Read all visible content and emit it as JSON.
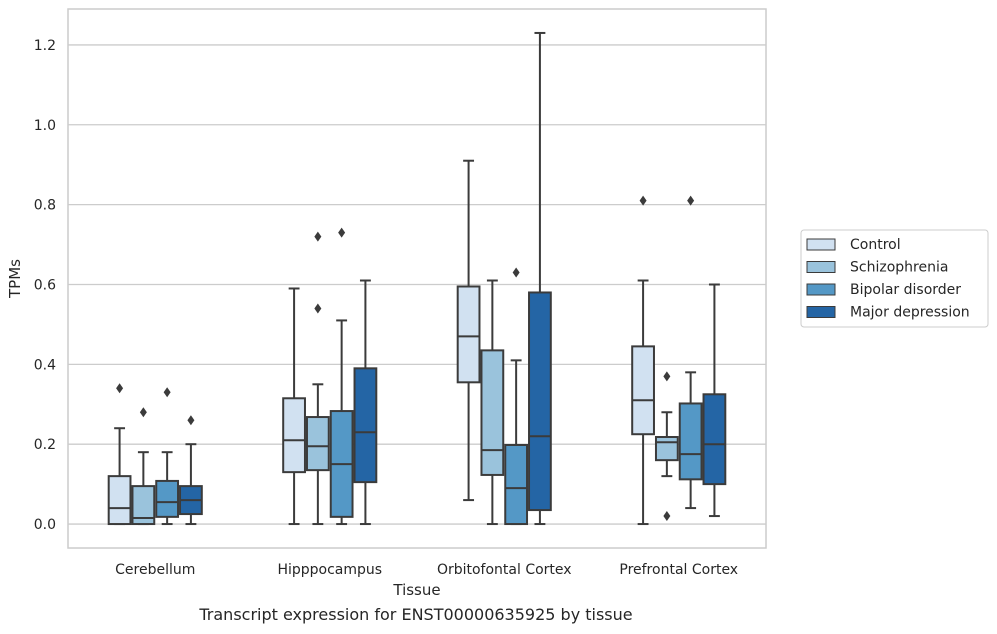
{
  "caption": "Transcript expression for ENST00000635925 by tissue",
  "chart_data": {
    "type": "box",
    "xlabel": "Tissue",
    "ylabel": "TPMs",
    "ylim": [
      -0.06,
      1.29
    ],
    "yticks": [
      0.0,
      0.2,
      0.4,
      0.6,
      0.8,
      1.0,
      1.2
    ],
    "ytick_labels": [
      "0.0",
      "0.2",
      "0.4",
      "0.6",
      "0.8",
      "1.0",
      "1.2"
    ],
    "grid": "horizontal",
    "legend_position": "right",
    "categories": [
      "Cerebellum",
      "Hipppocampus",
      "Orbitofontal Cortex",
      "Prefrontal Cortex"
    ],
    "series": [
      {
        "name": "Control",
        "color": "#d1e1f1",
        "boxes": [
          {
            "whislo": 0.0,
            "q1": 0.0,
            "med": 0.04,
            "q3": 0.12,
            "whishi": 0.24,
            "fliers": [
              0.34
            ]
          },
          {
            "whislo": 0.0,
            "q1": 0.13,
            "med": 0.21,
            "q3": 0.315,
            "whishi": 0.59,
            "fliers": []
          },
          {
            "whislo": 0.06,
            "q1": 0.355,
            "med": 0.47,
            "q3": 0.595,
            "whishi": 0.91,
            "fliers": []
          },
          {
            "whislo": 0.0,
            "q1": 0.225,
            "med": 0.31,
            "q3": 0.445,
            "whishi": 0.61,
            "fliers": [
              0.81
            ]
          }
        ]
      },
      {
        "name": "Schizophrenia",
        "color": "#9ac3dc",
        "boxes": [
          {
            "whislo": 0.0,
            "q1": 0.0,
            "med": 0.015,
            "q3": 0.095,
            "whishi": 0.18,
            "fliers": [
              0.28
            ]
          },
          {
            "whislo": 0.0,
            "q1": 0.135,
            "med": 0.195,
            "q3": 0.268,
            "whishi": 0.35,
            "fliers": [
              0.54,
              0.72
            ]
          },
          {
            "whislo": 0.0,
            "q1": 0.123,
            "med": 0.185,
            "q3": 0.435,
            "whishi": 0.61,
            "fliers": []
          },
          {
            "whislo": 0.12,
            "q1": 0.16,
            "med": 0.205,
            "q3": 0.218,
            "whishi": 0.28,
            "fliers": [
              0.02,
              0.37
            ]
          }
        ]
      },
      {
        "name": "Bipolar disorder",
        "color": "#5498c6",
        "boxes": [
          {
            "whislo": 0.0,
            "q1": 0.018,
            "med": 0.055,
            "q3": 0.108,
            "whishi": 0.18,
            "fliers": [
              0.33
            ]
          },
          {
            "whislo": 0.0,
            "q1": 0.018,
            "med": 0.15,
            "q3": 0.283,
            "whishi": 0.51,
            "fliers": [
              0.73
            ]
          },
          {
            "whislo": 0.0,
            "q1": 0.0,
            "med": 0.09,
            "q3": 0.198,
            "whishi": 0.41,
            "fliers": [
              0.63
            ]
          },
          {
            "whislo": 0.04,
            "q1": 0.112,
            "med": 0.175,
            "q3": 0.302,
            "whishi": 0.38,
            "fliers": [
              0.81
            ]
          }
        ]
      },
      {
        "name": "Major depression",
        "color": "#2465a5",
        "boxes": [
          {
            "whislo": 0.0,
            "q1": 0.025,
            "med": 0.06,
            "q3": 0.095,
            "whishi": 0.2,
            "fliers": [
              0.26
            ]
          },
          {
            "whislo": 0.0,
            "q1": 0.105,
            "med": 0.23,
            "q3": 0.39,
            "whishi": 0.61,
            "fliers": []
          },
          {
            "whislo": 0.0,
            "q1": 0.035,
            "med": 0.22,
            "q3": 0.58,
            "whishi": 1.23,
            "fliers": []
          },
          {
            "whislo": 0.02,
            "q1": 0.1,
            "med": 0.2,
            "q3": 0.325,
            "whishi": 0.6,
            "fliers": []
          }
        ]
      }
    ]
  }
}
